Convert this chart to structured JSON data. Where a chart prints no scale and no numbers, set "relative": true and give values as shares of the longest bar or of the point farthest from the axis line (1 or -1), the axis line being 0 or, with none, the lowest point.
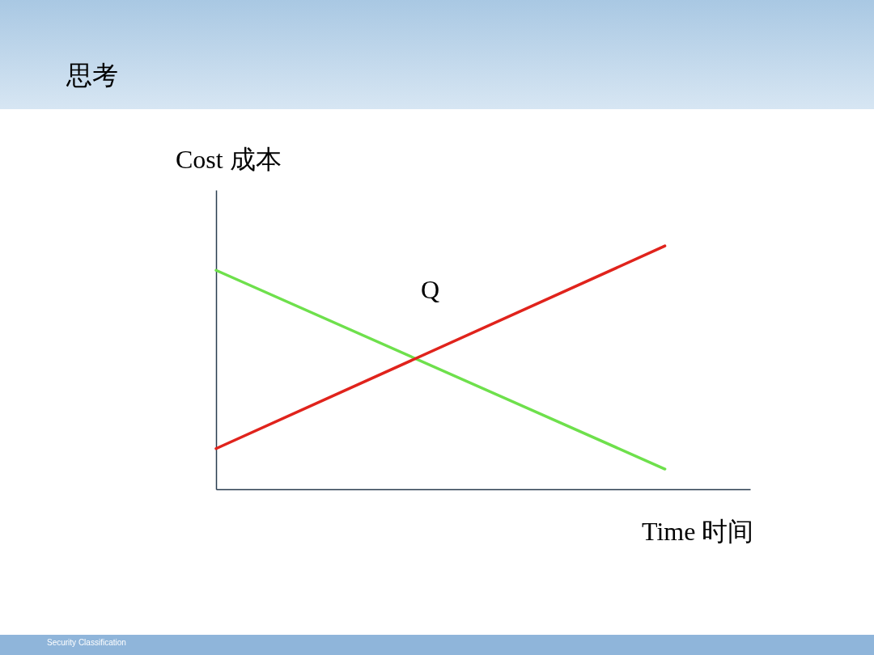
{
  "chart_data": {
    "type": "line",
    "title": "思考",
    "xlabel": "Time  时间",
    "ylabel": "Cost 成本",
    "relative": true,
    "categories": [
      null,
      null
    ],
    "series": [
      {
        "color": "#6ee04c",
        "values": [
          0.9,
          0.083
        ]
      },
      {
        "color": "#e0231c",
        "values": [
          0.167,
          1
        ]
      }
    ],
    "annotations": [
      "Q",
      "Security Classification"
    ],
    "grid": false,
    "legend": false,
    "marker": "none",
    "line_style": "solid"
  }
}
